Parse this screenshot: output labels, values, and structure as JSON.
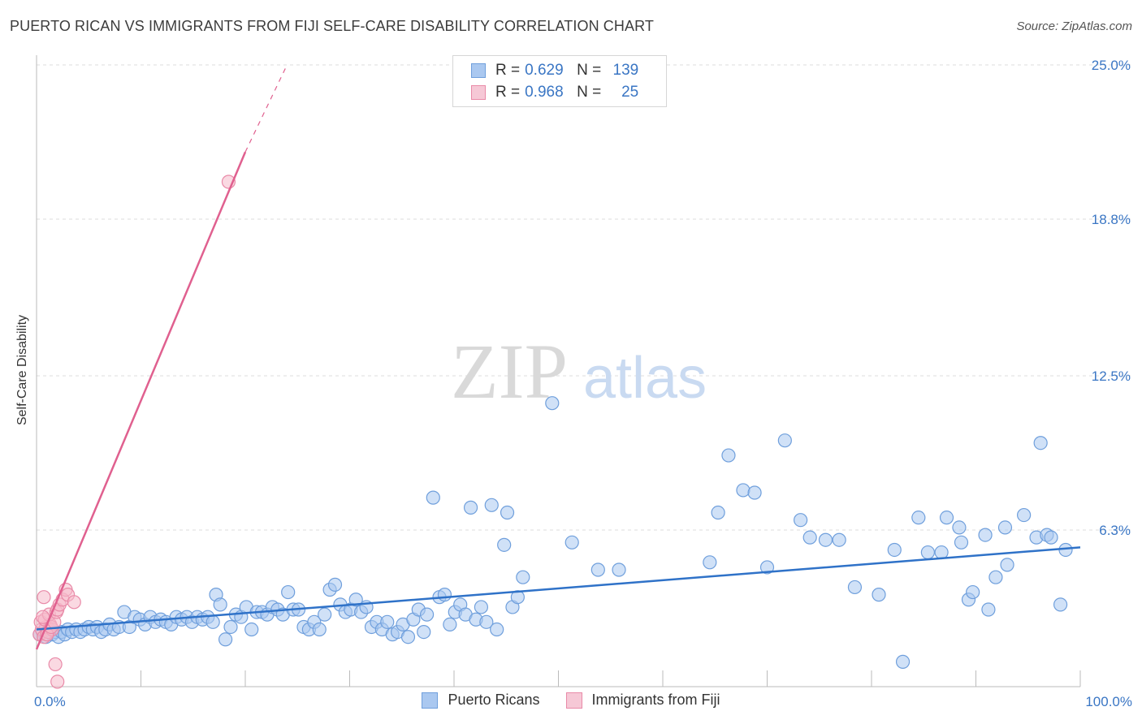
{
  "header": {
    "title": "PUERTO RICAN VS IMMIGRANTS FROM FIJI SELF-CARE DISABILITY CORRELATION CHART",
    "source": "Source: ZipAtlas.com"
  },
  "watermark": {
    "zip": "ZIP",
    "atlas": "atlas"
  },
  "colors": {
    "blue_fill": "#aac8f0",
    "blue_stroke": "#6f9fdc",
    "blue_line": "#2f72c8",
    "pink_fill": "#f6b9cb",
    "pink_stroke": "#e98aa8",
    "pink_line": "#e0608f",
    "tick_label": "#3a76c4",
    "grid": "#dddddd"
  },
  "legend_top": [
    {
      "r_label": "R =",
      "r_value": "0.629",
      "n_label": "N =",
      "n_value": "139"
    },
    {
      "r_label": "R =",
      "r_value": "0.968",
      "n_label": "N =",
      "n_value": "25"
    }
  ],
  "legend_bottom": [
    "Puerto Ricans",
    "Immigrants from Fiji"
  ],
  "chart_data": {
    "type": "scatter",
    "title": "PUERTO RICAN VS IMMIGRANTS FROM FIJI SELF-CARE DISABILITY CORRELATION CHART",
    "xlabel": "",
    "ylabel": "Self-Care Disability",
    "xlim": [
      0,
      100
    ],
    "ylim": [
      0,
      25
    ],
    "x_tick_labels": [
      "0.0%",
      "100.0%"
    ],
    "y_ticks": [
      6.3,
      12.5,
      18.8,
      25.0
    ],
    "y_tick_labels": [
      "6.3%",
      "12.5%",
      "18.8%",
      "25.0%"
    ],
    "grid": true,
    "series": [
      {
        "name": "Puerto Ricans",
        "r": 0.629,
        "n": 139,
        "trend": {
          "x": [
            0,
            100
          ],
          "y": [
            2.3,
            5.6
          ]
        },
        "points": [
          [
            0.3,
            2.1
          ],
          [
            0.6,
            2.2
          ],
          [
            0.9,
            2.0
          ],
          [
            1.2,
            2.3
          ],
          [
            1.5,
            2.1
          ],
          [
            1.8,
            2.2
          ],
          [
            2.1,
            2.0
          ],
          [
            2.4,
            2.2
          ],
          [
            2.7,
            2.1
          ],
          [
            3.0,
            2.3
          ],
          [
            3.4,
            2.2
          ],
          [
            3.8,
            2.3
          ],
          [
            4.2,
            2.2
          ],
          [
            4.6,
            2.3
          ],
          [
            5.0,
            2.4
          ],
          [
            5.4,
            2.3
          ],
          [
            5.8,
            2.4
          ],
          [
            6.2,
            2.2
          ],
          [
            6.6,
            2.3
          ],
          [
            7.0,
            2.5
          ],
          [
            7.4,
            2.3
          ],
          [
            7.9,
            2.4
          ],
          [
            8.4,
            3.0
          ],
          [
            8.9,
            2.4
          ],
          [
            9.4,
            2.8
          ],
          [
            9.9,
            2.7
          ],
          [
            10.4,
            2.5
          ],
          [
            10.9,
            2.8
          ],
          [
            11.4,
            2.6
          ],
          [
            11.9,
            2.7
          ],
          [
            12.4,
            2.6
          ],
          [
            12.9,
            2.5
          ],
          [
            13.4,
            2.8
          ],
          [
            13.9,
            2.7
          ],
          [
            14.4,
            2.8
          ],
          [
            14.9,
            2.6
          ],
          [
            15.4,
            2.8
          ],
          [
            15.9,
            2.7
          ],
          [
            16.4,
            2.8
          ],
          [
            16.9,
            2.6
          ],
          [
            17.2,
            3.7
          ],
          [
            17.6,
            3.3
          ],
          [
            18.1,
            1.9
          ],
          [
            18.6,
            2.4
          ],
          [
            19.1,
            2.9
          ],
          [
            19.6,
            2.8
          ],
          [
            20.1,
            3.2
          ],
          [
            20.6,
            2.3
          ],
          [
            21.1,
            3.0
          ],
          [
            21.6,
            3.0
          ],
          [
            22.1,
            2.9
          ],
          [
            22.6,
            3.2
          ],
          [
            23.1,
            3.1
          ],
          [
            23.6,
            2.9
          ],
          [
            24.1,
            3.8
          ],
          [
            24.6,
            3.1
          ],
          [
            25.1,
            3.1
          ],
          [
            25.6,
            2.4
          ],
          [
            26.1,
            2.3
          ],
          [
            26.6,
            2.6
          ],
          [
            27.1,
            2.3
          ],
          [
            27.6,
            2.9
          ],
          [
            28.1,
            3.9
          ],
          [
            28.6,
            4.1
          ],
          [
            29.1,
            3.3
          ],
          [
            29.6,
            3.0
          ],
          [
            30.1,
            3.1
          ],
          [
            30.6,
            3.5
          ],
          [
            31.1,
            3.0
          ],
          [
            31.6,
            3.2
          ],
          [
            32.1,
            2.4
          ],
          [
            32.6,
            2.6
          ],
          [
            33.1,
            2.3
          ],
          [
            33.6,
            2.6
          ],
          [
            34.1,
            2.1
          ],
          [
            34.6,
            2.2
          ],
          [
            35.1,
            2.5
          ],
          [
            35.6,
            2.0
          ],
          [
            36.1,
            2.7
          ],
          [
            36.6,
            3.1
          ],
          [
            37.1,
            2.2
          ],
          [
            37.4,
            2.9
          ],
          [
            38.0,
            7.6
          ],
          [
            38.6,
            3.6
          ],
          [
            39.1,
            3.7
          ],
          [
            39.6,
            2.5
          ],
          [
            40.1,
            3.0
          ],
          [
            40.6,
            3.3
          ],
          [
            41.1,
            2.9
          ],
          [
            41.6,
            7.2
          ],
          [
            42.1,
            2.7
          ],
          [
            42.6,
            3.2
          ],
          [
            43.1,
            2.6
          ],
          [
            43.6,
            7.3
          ],
          [
            44.1,
            2.3
          ],
          [
            44.8,
            5.7
          ],
          [
            45.1,
            7.0
          ],
          [
            45.6,
            3.2
          ],
          [
            46.1,
            3.6
          ],
          [
            46.6,
            4.4
          ],
          [
            49.4,
            11.4
          ],
          [
            51.3,
            5.8
          ],
          [
            53.8,
            4.7
          ],
          [
            55.8,
            4.7
          ],
          [
            64.5,
            5.0
          ],
          [
            65.3,
            7.0
          ],
          [
            66.3,
            9.3
          ],
          [
            67.7,
            7.9
          ],
          [
            68.8,
            7.8
          ],
          [
            70.0,
            4.8
          ],
          [
            71.7,
            9.9
          ],
          [
            73.2,
            6.7
          ],
          [
            74.1,
            6.0
          ],
          [
            75.6,
            5.9
          ],
          [
            76.9,
            5.9
          ],
          [
            78.4,
            4.0
          ],
          [
            80.7,
            3.7
          ],
          [
            82.2,
            5.5
          ],
          [
            83.0,
            1.0
          ],
          [
            84.5,
            6.8
          ],
          [
            85.4,
            5.4
          ],
          [
            86.7,
            5.4
          ],
          [
            87.2,
            6.8
          ],
          [
            88.4,
            6.4
          ],
          [
            88.6,
            5.8
          ],
          [
            89.3,
            3.5
          ],
          [
            89.7,
            3.8
          ],
          [
            90.9,
            6.1
          ],
          [
            91.2,
            3.1
          ],
          [
            91.9,
            4.4
          ],
          [
            92.8,
            6.4
          ],
          [
            93.0,
            4.9
          ],
          [
            94.6,
            6.9
          ],
          [
            95.8,
            6.0
          ],
          [
            96.2,
            9.8
          ],
          [
            96.8,
            6.1
          ],
          [
            97.2,
            6.0
          ],
          [
            98.1,
            3.3
          ],
          [
            98.6,
            5.5
          ]
        ]
      },
      {
        "name": "Immigrants from Fiji",
        "r": 0.968,
        "n": 25,
        "trend": {
          "x": [
            0,
            20
          ],
          "y": [
            1.5,
            21.5
          ]
        },
        "trend_dashed": {
          "x": [
            20,
            24
          ],
          "y": [
            21.5,
            25.0
          ]
        },
        "points": [
          [
            0.3,
            2.1
          ],
          [
            0.5,
            2.3
          ],
          [
            0.7,
            2.0
          ],
          [
            0.9,
            2.4
          ],
          [
            1.1,
            2.2
          ],
          [
            1.3,
            2.5
          ],
          [
            0.4,
            2.6
          ],
          [
            0.8,
            2.7
          ],
          [
            1.2,
            2.9
          ],
          [
            1.5,
            2.3
          ],
          [
            0.6,
            2.8
          ],
          [
            1.0,
            2.1
          ],
          [
            1.4,
            2.4
          ],
          [
            1.7,
            2.6
          ],
          [
            1.9,
            3.0
          ],
          [
            2.0,
            3.1
          ],
          [
            2.2,
            3.3
          ],
          [
            2.5,
            3.5
          ],
          [
            2.8,
            3.9
          ],
          [
            0.7,
            3.6
          ],
          [
            3.0,
            3.7
          ],
          [
            3.6,
            3.4
          ],
          [
            1.8,
            0.9
          ],
          [
            2.0,
            0.2
          ],
          [
            18.4,
            20.3
          ]
        ]
      }
    ]
  }
}
